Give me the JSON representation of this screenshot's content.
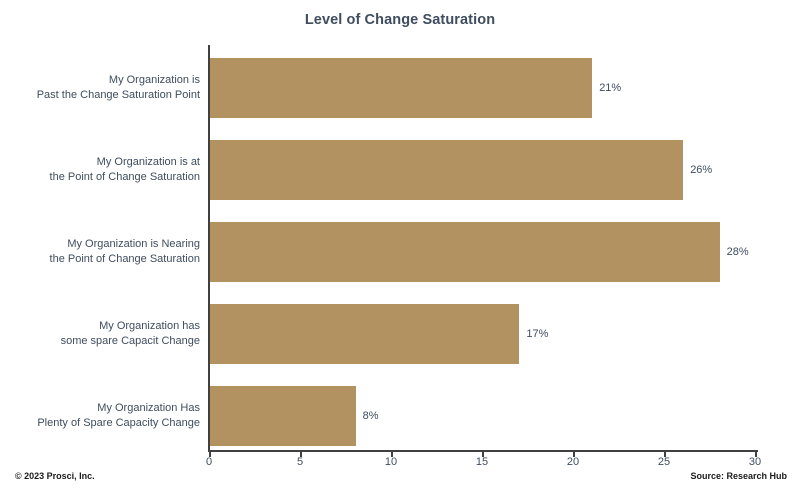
{
  "title": "Level of Change Saturation",
  "chart_data": {
    "type": "bar",
    "orientation": "horizontal",
    "title": "Level of Change Saturation",
    "categories": [
      [
        "My Organization is",
        "Past the Change Saturation Point"
      ],
      [
        "My Organization is at",
        "the Point of Change Saturation"
      ],
      [
        "My Organization is Nearing",
        "the Point of Change Saturation"
      ],
      [
        "My Organization has",
        "some spare Capacit Change"
      ],
      [
        "My Organization Has",
        "Plenty of Spare Capacity Change"
      ]
    ],
    "values": [
      21,
      26,
      28,
      17,
      8
    ],
    "value_labels": [
      "21%",
      "26%",
      "28%",
      "17%",
      "8%"
    ],
    "xlim": [
      0,
      30
    ],
    "x_ticks": [
      0,
      5,
      10,
      15,
      20,
      25,
      30
    ],
    "grid": false,
    "legend": "none",
    "bar_color": "#b19260",
    "text_color": "#3f4d5e",
    "axis_color": "#404040"
  },
  "footer": {
    "left": "© 2023 Prosci, Inc.",
    "right": "Source: Research Hub"
  }
}
